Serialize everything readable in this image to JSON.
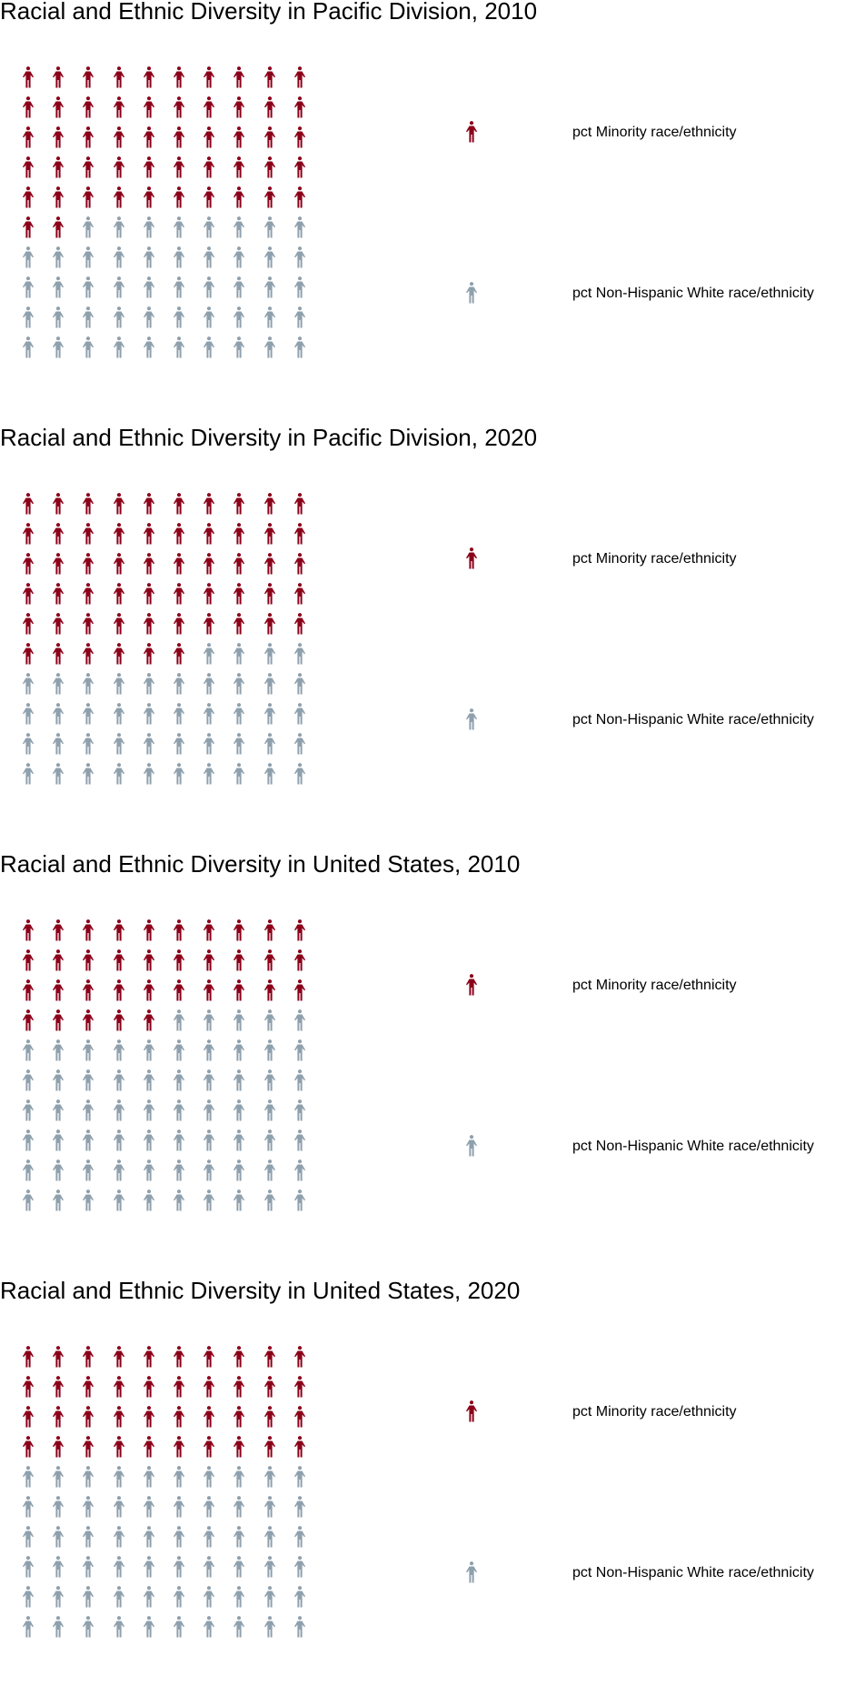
{
  "colors": {
    "minority": "#8b0019",
    "white": "#8fa0ad"
  },
  "icon": "person-icon",
  "chart_data": [
    {
      "type": "waffle",
      "title": "Racial and Ethnic Diversity in Pacific Division, 2010",
      "rows": 10,
      "cols": 10,
      "series": [
        {
          "name": "pct Minority race/ethnicity",
          "value": 52
        },
        {
          "name": "pct Non-Hispanic White race/ethnicity",
          "value": 48
        }
      ]
    },
    {
      "type": "waffle",
      "title": "Racial and Ethnic Diversity in Pacific Division, 2020",
      "rows": 10,
      "cols": 10,
      "series": [
        {
          "name": "pct Minority race/ethnicity",
          "value": 56
        },
        {
          "name": "pct Non-Hispanic White race/ethnicity",
          "value": 44
        }
      ]
    },
    {
      "type": "waffle",
      "title": "Racial and Ethnic Diversity in United States, 2010",
      "rows": 10,
      "cols": 10,
      "series": [
        {
          "name": "pct Minority race/ethnicity",
          "value": 35
        },
        {
          "name": "pct Non-Hispanic White race/ethnicity",
          "value": 65
        }
      ]
    },
    {
      "type": "waffle",
      "title": "Racial and Ethnic Diversity in United States, 2020",
      "rows": 10,
      "cols": 10,
      "series": [
        {
          "name": "pct Minority race/ethnicity",
          "value": 40
        },
        {
          "name": "pct Non-Hispanic White race/ethnicity",
          "value": 60
        }
      ]
    }
  ]
}
